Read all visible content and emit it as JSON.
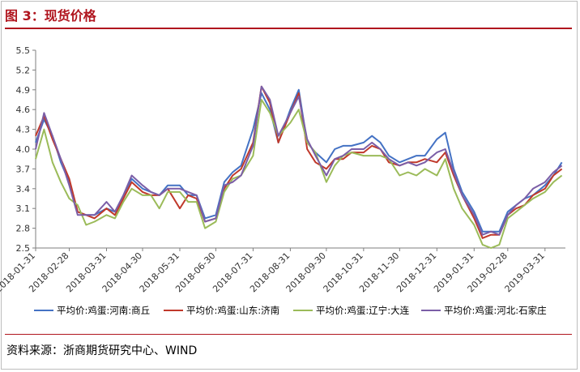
{
  "figure": {
    "title": "图 3：现货价格",
    "source": "资料来源：浙商期货研究中心、WIND"
  },
  "chart_data": {
    "type": "line",
    "x": [
      "2018-01-31",
      "2018-02-07",
      "2018-02-14",
      "2018-02-21",
      "2018-02-28",
      "2018-03-07",
      "2018-03-14",
      "2018-03-21",
      "2018-03-31",
      "2018-04-07",
      "2018-04-14",
      "2018-04-21",
      "2018-04-30",
      "2018-05-07",
      "2018-05-14",
      "2018-05-21",
      "2018-05-31",
      "2018-06-07",
      "2018-06-14",
      "2018-06-21",
      "2018-06-30",
      "2018-07-07",
      "2018-07-14",
      "2018-07-21",
      "2018-07-31",
      "2018-08-07",
      "2018-08-14",
      "2018-08-21",
      "2018-08-31",
      "2018-09-07",
      "2018-09-14",
      "2018-09-21",
      "2018-09-30",
      "2018-10-07",
      "2018-10-14",
      "2018-10-21",
      "2018-10-31",
      "2018-11-07",
      "2018-11-14",
      "2018-11-21",
      "2018-11-30",
      "2018-12-07",
      "2018-12-14",
      "2018-12-21",
      "2018-12-31",
      "2019-01-07",
      "2019-01-14",
      "2019-01-21",
      "2019-01-31",
      "2019-02-07",
      "2019-02-14",
      "2019-02-21",
      "2019-02-28",
      "2019-03-07",
      "2019-03-14",
      "2019-03-21",
      "2019-03-31",
      "2019-04-07",
      "2019-04-14"
    ],
    "xticks": [
      "2018-01-31",
      "2018-02-28",
      "2018-03-31",
      "2018-04-30",
      "2018-05-31",
      "2018-06-30",
      "2018-07-31",
      "2018-08-31",
      "2018-09-30",
      "2018-10-31",
      "2018-11-30",
      "2018-12-31",
      "2019-01-31",
      "2019-02-28",
      "2019-03-31"
    ],
    "ylim": [
      2.5,
      5.5
    ],
    "yticks": [
      2.5,
      2.8,
      3.1,
      3.4,
      3.7,
      4.0,
      4.3,
      4.6,
      4.9,
      5.2,
      5.5
    ],
    "grid": false,
    "legend": "bottom",
    "series": [
      {
        "name": "平均价:鸡蛋:河南:商丘",
        "color": "#4472c4",
        "values": [
          4.1,
          4.45,
          4.2,
          3.8,
          3.5,
          3.05,
          3.0,
          3.0,
          3.1,
          3.05,
          3.3,
          3.55,
          3.4,
          3.35,
          3.3,
          3.45,
          3.45,
          3.3,
          3.3,
          2.95,
          3.0,
          3.5,
          3.65,
          3.75,
          4.3,
          4.85,
          4.6,
          4.1,
          4.6,
          4.9,
          4.1,
          3.95,
          3.8,
          4.0,
          4.05,
          4.05,
          4.1,
          4.2,
          4.1,
          3.9,
          3.8,
          3.85,
          3.9,
          3.9,
          4.15,
          4.25,
          3.7,
          3.35,
          3.05,
          2.75,
          2.75,
          2.75,
          3.05,
          3.15,
          3.25,
          3.3,
          3.45,
          3.6,
          3.8
        ]
      },
      {
        "name": "平均价:鸡蛋:山东:济南",
        "color": "#c0392b",
        "values": [
          4.2,
          4.5,
          4.15,
          3.85,
          3.55,
          3.05,
          3.0,
          2.95,
          3.1,
          3.0,
          3.25,
          3.5,
          3.35,
          3.3,
          3.3,
          3.4,
          3.1,
          3.3,
          3.25,
          2.9,
          2.95,
          3.4,
          3.6,
          3.7,
          4.1,
          4.95,
          4.7,
          4.1,
          4.55,
          4.85,
          4.0,
          3.8,
          3.7,
          3.85,
          3.85,
          3.95,
          3.95,
          4.05,
          4.0,
          3.8,
          3.75,
          3.8,
          3.8,
          3.85,
          3.8,
          3.95,
          3.6,
          3.3,
          2.95,
          2.65,
          2.7,
          2.7,
          3.0,
          3.1,
          3.15,
          3.3,
          3.4,
          3.6,
          3.7
        ]
      },
      {
        "name": "平均价:鸡蛋:辽宁:大连",
        "color": "#9bbb59",
        "values": [
          3.85,
          4.3,
          3.8,
          3.5,
          3.25,
          3.15,
          2.85,
          2.9,
          3.0,
          2.95,
          3.2,
          3.4,
          3.3,
          3.3,
          3.1,
          3.35,
          3.35,
          3.2,
          3.2,
          2.8,
          2.9,
          3.35,
          3.55,
          3.6,
          3.9,
          4.75,
          4.55,
          4.2,
          4.4,
          4.6,
          4.1,
          3.95,
          3.5,
          3.75,
          3.9,
          3.95,
          3.9,
          3.9,
          3.9,
          3.85,
          3.6,
          3.65,
          3.6,
          3.7,
          3.6,
          3.85,
          3.4,
          3.1,
          2.85,
          2.55,
          2.5,
          2.55,
          2.95,
          3.05,
          3.15,
          3.25,
          3.35,
          3.5,
          3.6
        ]
      },
      {
        "name": "平均价:鸡蛋:河北:石家庄",
        "color": "#7b5ea7",
        "values": [
          4.0,
          4.55,
          4.2,
          3.85,
          3.45,
          3.0,
          3.0,
          3.0,
          3.2,
          3.05,
          3.3,
          3.6,
          3.45,
          3.35,
          3.3,
          3.4,
          3.4,
          3.35,
          3.3,
          2.9,
          2.95,
          3.45,
          3.5,
          3.6,
          4.05,
          4.95,
          4.75,
          4.2,
          4.55,
          4.8,
          4.15,
          3.9,
          3.6,
          3.85,
          3.9,
          4.0,
          4.0,
          4.1,
          4.0,
          3.85,
          3.75,
          3.8,
          3.75,
          3.8,
          3.95,
          4.0,
          3.65,
          3.3,
          3.0,
          2.7,
          2.75,
          2.7,
          3.0,
          3.15,
          3.25,
          3.4,
          3.5,
          3.65,
          3.75
        ]
      }
    ]
  }
}
